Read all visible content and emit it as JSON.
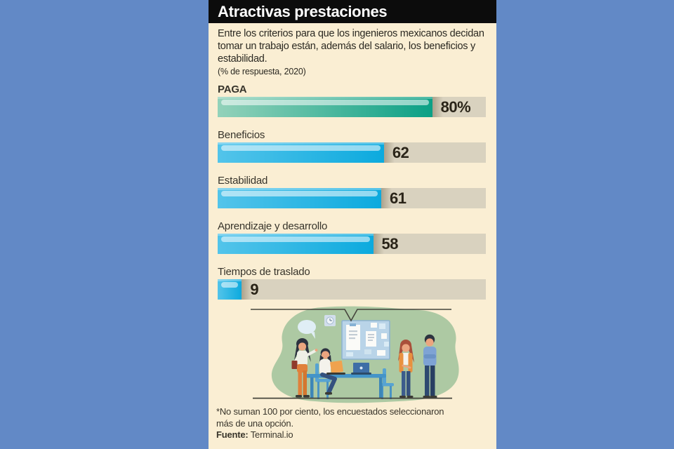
{
  "colors": {
    "page_bg": "#6289c6",
    "card_bg": "#faeed3",
    "header_bg": "#0c0c0c",
    "track": "#d9d2bf",
    "bar_green": "#0ba085",
    "bar_blue": "#0caade"
  },
  "header": {
    "title": "Atractivas prestaciones"
  },
  "intro": {
    "description": "Entre los criterios para que los ingenieros mexicanos decidan tomar un trabajo están, además del salario, los beneficios y estabilidad.",
    "unit_note": "(% de respuesta, 2020)"
  },
  "chart_data": {
    "type": "bar",
    "orientation": "horizontal",
    "title": "Atractivas prestaciones",
    "subtitle": "Entre los criterios para que los ingenieros mexicanos decidan tomar un trabajo están, además del salario, los beneficios y estabilidad.",
    "unit_note": "(% de respuesta, 2020)",
    "xlim": [
      0,
      100
    ],
    "grid": false,
    "legend": "none",
    "categories": [
      "PAGA",
      "Beneficios",
      "Estabilidad",
      "Aprendizaje y desarrollo",
      "Tiempos de traslado"
    ],
    "values": [
      80,
      62,
      61,
      58,
      9
    ],
    "value_labels": [
      "80%",
      "62",
      "61",
      "58",
      "9"
    ],
    "bar_colors": [
      "#0ba085",
      "#0caade",
      "#0caade",
      "#0caade",
      "#0caade"
    ]
  },
  "footnote": {
    "line1": "*No suman 100 por ciento, los encuestados seleccionaron",
    "line2": "más de una opción.",
    "source_label": "Fuente:",
    "source_value": "Terminal.io"
  },
  "illustration": {
    "scene": "office-team-meeting"
  }
}
